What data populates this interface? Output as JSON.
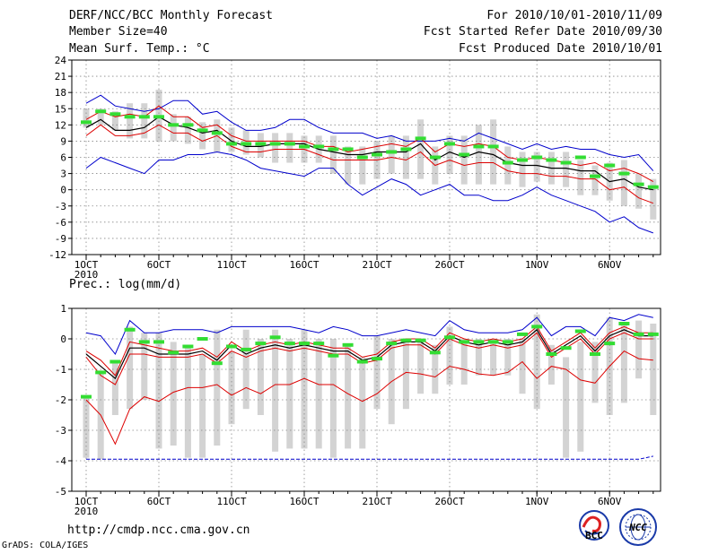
{
  "header": {
    "title": "DERF/NCC/BCC Monthly Forecast",
    "member_size": "Member Size=40",
    "variable": "Mean Surf. Temp.: °C",
    "period": "For 2010/10/01-2010/11/09",
    "fcst_started": "Fcst Started Refer Date 2010/09/30",
    "fcst_produced": "Fcst Produced Date 2010/10/01"
  },
  "footer": {
    "url": "http://cmdp.ncc.cma.gov.cn",
    "credit": "GrADS: COLA/IGES",
    "logo_left_text": "BCC",
    "logo_right_text": "NCC"
  },
  "colors": {
    "ensemble_mean": "#000000",
    "spread_bound": "#dd0000",
    "extreme_bound": "#0000cc",
    "member_bar": "#d3d3d3",
    "observed_marker": "#33dd33"
  },
  "chart_data": [
    {
      "type": "line",
      "name": "temperature",
      "ylabel": "Mean Surf. Temp.: °C",
      "ylim": [
        -12,
        24
      ],
      "yticks": [
        -12,
        -9,
        -6,
        -3,
        0,
        3,
        6,
        9,
        12,
        15,
        18,
        21,
        24
      ],
      "grid": true,
      "x": [
        1,
        2,
        3,
        4,
        5,
        6,
        7,
        8,
        9,
        10,
        11,
        12,
        13,
        14,
        15,
        16,
        17,
        18,
        19,
        20,
        21,
        22,
        23,
        24,
        25,
        26,
        27,
        28,
        29,
        30,
        31,
        32,
        33,
        34,
        35,
        36,
        37,
        38,
        39,
        40
      ],
      "xtick_labels": [
        {
          "day": 1,
          "label": "1OCT",
          "sub": "2010"
        },
        {
          "day": 6,
          "label": "6OCT"
        },
        {
          "day": 11,
          "label": "11OCT"
        },
        {
          "day": 16,
          "label": "16OCT"
        },
        {
          "day": 21,
          "label": "21OCT"
        },
        {
          "day": 26,
          "label": "26OCT"
        },
        {
          "day": 32,
          "label": "1NOV"
        },
        {
          "day": 37,
          "label": "6NOV"
        }
      ],
      "series": [
        {
          "name": "max",
          "color": "#0000cc",
          "values": [
            16,
            17.5,
            15.5,
            15,
            14.5,
            15,
            16.5,
            16.5,
            14,
            14.5,
            12.5,
            11,
            11,
            11.5,
            13,
            13,
            11.5,
            10.5,
            10.5,
            10.5,
            9.5,
            10,
            9,
            9,
            9,
            9.5,
            9,
            10.5,
            9.5,
            8.5,
            7.5,
            8.5,
            7.5,
            8,
            7.5,
            7.5,
            6.5,
            6,
            6.5,
            3.5
          ]
        },
        {
          "name": "upper",
          "color": "#dd0000",
          "values": [
            13,
            14.5,
            13.5,
            14,
            13.5,
            15.5,
            13.5,
            13.5,
            11.5,
            12,
            10,
            9,
            9,
            9,
            9,
            9,
            8,
            8,
            7,
            7.5,
            8,
            8.5,
            8,
            9.5,
            7,
            8.5,
            8,
            8.5,
            8,
            6,
            5.5,
            6,
            5.5,
            5,
            4.5,
            5,
            3.5,
            4,
            3,
            1.5
          ]
        },
        {
          "name": "mean",
          "color": "#000000",
          "values": [
            11.5,
            13,
            11,
            11,
            11.5,
            13.5,
            12,
            11.5,
            10.5,
            11,
            9,
            8,
            8,
            8.5,
            8.5,
            8.5,
            7.5,
            7,
            6.5,
            6.5,
            7,
            7,
            7,
            8.5,
            5.5,
            7,
            6,
            7,
            6.5,
            5,
            4.5,
            4.5,
            4,
            4,
            3.5,
            3.5,
            1.5,
            2,
            0.5,
            0
          ]
        },
        {
          "name": "lower",
          "color": "#dd0000",
          "values": [
            10,
            12,
            10,
            10,
            10.5,
            12,
            10.5,
            10.5,
            9,
            10,
            8,
            7,
            7,
            7.5,
            7.5,
            7.5,
            6.5,
            5.5,
            5.5,
            5.5,
            5.5,
            6,
            5.5,
            7,
            4.5,
            5.5,
            4.5,
            5,
            5,
            3.5,
            3,
            3,
            2.5,
            2.5,
            2,
            2,
            0,
            0.5,
            -1.5,
            -2.5
          ]
        },
        {
          "name": "min",
          "color": "#0000cc",
          "values": [
            4,
            6,
            5,
            4,
            3,
            5.5,
            5.5,
            6.5,
            6.5,
            7,
            6.5,
            5.5,
            4,
            3.5,
            3,
            2.5,
            4,
            4,
            1,
            -1,
            0.5,
            2,
            1,
            -1,
            0,
            1,
            -1,
            -1,
            -2,
            -2,
            -1,
            0.5,
            -1,
            -2,
            -3,
            -4,
            -6,
            -5,
            -7,
            -8
          ]
        }
      ],
      "member_range": [
        [
          11.5,
          15
        ],
        [
          12,
          15
        ],
        [
          11,
          14.5
        ],
        [
          9.5,
          16
        ],
        [
          9.5,
          16
        ],
        [
          9,
          18.5
        ],
        [
          9,
          14
        ],
        [
          8.5,
          13.5
        ],
        [
          7.5,
          12.5
        ],
        [
          7,
          13
        ],
        [
          7,
          11.5
        ],
        [
          6.5,
          11
        ],
        [
          6,
          10.5
        ],
        [
          5,
          10.5
        ],
        [
          5,
          10.5
        ],
        [
          5,
          10
        ],
        [
          5,
          10
        ],
        [
          3,
          10
        ],
        [
          1,
          8
        ],
        [
          1,
          8
        ],
        [
          2,
          9
        ],
        [
          3,
          10
        ],
        [
          2,
          10
        ],
        [
          2,
          13
        ],
        [
          1,
          8
        ],
        [
          3,
          10
        ],
        [
          1,
          10
        ],
        [
          1,
          12
        ],
        [
          1,
          13
        ],
        [
          1,
          8
        ],
        [
          0.5,
          7
        ],
        [
          1.5,
          7
        ],
        [
          1,
          7
        ],
        [
          0.5,
          7
        ],
        [
          -1,
          5.5
        ],
        [
          -1,
          4.5
        ],
        [
          -2,
          5
        ],
        [
          -3,
          5.5
        ],
        [
          -3.5,
          3
        ],
        [
          -5.5,
          2
        ]
      ],
      "observed": [
        12.5,
        14.5,
        14,
        13.5,
        13.5,
        13.5,
        12,
        12,
        11,
        10.5,
        8.5,
        8.5,
        8.5,
        8.5,
        8.5,
        8,
        8,
        7.5,
        7.5,
        6,
        6.5,
        7,
        7.5,
        9.5,
        6,
        8.5,
        6.5,
        8,
        8,
        5,
        5.5,
        6,
        5.5,
        5,
        6,
        2.5,
        4.5,
        3,
        1,
        0.5
      ]
    },
    {
      "type": "line",
      "name": "precipitation",
      "ylabel": "Prec.: log(mm/d)",
      "ylim": [
        -5,
        1
      ],
      "yticks": [
        -5,
        -4,
        -3,
        -2,
        -1,
        0,
        1
      ],
      "grid": true,
      "x": [
        1,
        2,
        3,
        4,
        5,
        6,
        7,
        8,
        9,
        10,
        11,
        12,
        13,
        14,
        15,
        16,
        17,
        18,
        19,
        20,
        21,
        22,
        23,
        24,
        25,
        26,
        27,
        28,
        29,
        30,
        31,
        32,
        33,
        34,
        35,
        36,
        37,
        38,
        39,
        40
      ],
      "xtick_labels": [
        {
          "day": 1,
          "label": "1OCT",
          "sub": "2010"
        },
        {
          "day": 6,
          "label": "6OCT"
        },
        {
          "day": 11,
          "label": "11OCT"
        },
        {
          "day": 16,
          "label": "16OCT"
        },
        {
          "day": 21,
          "label": "21OCT"
        },
        {
          "day": 26,
          "label": "26OCT"
        },
        {
          "day": 32,
          "label": "1NOV"
        },
        {
          "day": 37,
          "label": "6NOV"
        }
      ],
      "series": [
        {
          "name": "max",
          "color": "#0000cc",
          "values": [
            0.2,
            0.1,
            -0.5,
            0.6,
            0.2,
            0.2,
            0.3,
            0.3,
            0.3,
            0.2,
            0.4,
            0.4,
            0.4,
            0.4,
            0.4,
            0.3,
            0.2,
            0.4,
            0.3,
            0.1,
            0.1,
            0.2,
            0.3,
            0.2,
            0.1,
            0.6,
            0.3,
            0.2,
            0.2,
            0.2,
            0.3,
            0.7,
            0.1,
            0.4,
            0.4,
            0.1,
            0.7,
            0.6,
            0.8,
            0.7
          ]
        },
        {
          "name": "upper",
          "color": "#dd0000",
          "values": [
            -0.4,
            -0.7,
            -1.2,
            -0.1,
            -0.2,
            -0.3,
            -0.4,
            -0.4,
            -0.3,
            -0.6,
            -0.1,
            -0.4,
            -0.2,
            -0.1,
            -0.2,
            -0.1,
            -0.2,
            -0.3,
            -0.3,
            -0.6,
            -0.5,
            -0.1,
            0,
            0,
            -0.3,
            0.2,
            0,
            -0.1,
            0,
            -0.1,
            0,
            0.4,
            -0.4,
            -0.1,
            0.2,
            -0.3,
            0.2,
            0.4,
            0.2,
            0.2
          ]
        },
        {
          "name": "mean",
          "color": "#000000",
          "values": [
            -0.5,
            -0.9,
            -1.3,
            -0.3,
            -0.3,
            -0.5,
            -0.5,
            -0.5,
            -0.4,
            -0.7,
            -0.2,
            -0.5,
            -0.3,
            -0.2,
            -0.3,
            -0.2,
            -0.3,
            -0.4,
            -0.4,
            -0.7,
            -0.6,
            -0.2,
            -0.1,
            -0.1,
            -0.4,
            0.1,
            -0.1,
            -0.2,
            -0.1,
            -0.2,
            -0.1,
            0.3,
            -0.5,
            -0.2,
            0.1,
            -0.4,
            0.1,
            0.3,
            0.1,
            0.1
          ]
        },
        {
          "name": "lower",
          "color": "#dd0000",
          "values": [
            -0.6,
            -1.2,
            -1.5,
            -0.5,
            -0.5,
            -0.6,
            -0.6,
            -0.6,
            -0.5,
            -0.8,
            -0.4,
            -0.6,
            -0.4,
            -0.3,
            -0.4,
            -0.3,
            -0.4,
            -0.5,
            -0.5,
            -0.8,
            -0.7,
            -0.3,
            -0.2,
            -0.2,
            -0.5,
            0,
            -0.2,
            -0.3,
            -0.2,
            -0.3,
            -0.2,
            0.2,
            -0.6,
            -0.3,
            0,
            -0.5,
            0,
            0.2,
            0,
            0
          ]
        },
        {
          "name": "min",
          "color": "#dd0000",
          "values": [
            -2.0,
            -2.5,
            -3.45,
            -2.3,
            -1.9,
            -2.05,
            -1.75,
            -1.6,
            -1.6,
            -1.5,
            -1.85,
            -1.6,
            -1.8,
            -1.5,
            -1.5,
            -1.3,
            -1.5,
            -1.5,
            -1.8,
            -2.05,
            -1.8,
            -1.4,
            -1.1,
            -1.15,
            -1.25,
            -0.9,
            -1.0,
            -1.15,
            -1.2,
            -1.1,
            -0.75,
            -1.3,
            -0.9,
            -1.0,
            -1.35,
            -1.45,
            -0.9,
            -0.4,
            -0.65,
            -0.7
          ]
        },
        {
          "name": "floor",
          "color": "#0000cc",
          "values": [
            -3.95,
            -3.95,
            -3.95,
            -3.95,
            -3.95,
            -3.95,
            -3.95,
            -3.95,
            -3.95,
            -3.95,
            -3.95,
            -3.95,
            -3.95,
            -3.95,
            -3.95,
            -3.95,
            -3.95,
            -3.95,
            -3.95,
            -3.95,
            -3.95,
            -3.95,
            -3.95,
            -3.95,
            -3.95,
            -3.95,
            -3.95,
            -3.95,
            -3.95,
            -3.95,
            -3.95,
            -3.95,
            -3.95,
            -3.95,
            -3.95,
            -3.95,
            -3.95,
            -3.95,
            -3.95,
            -3.85
          ]
        }
      ],
      "member_range": [
        [
          -3.9,
          -1.9
        ],
        [
          -3.95,
          -1.1
        ],
        [
          -2.5,
          -0.8
        ],
        [
          -2.3,
          0.4
        ],
        [
          -2.0,
          0.2
        ],
        [
          -3.6,
          0.2
        ],
        [
          -3.5,
          -0.1
        ],
        [
          -3.9,
          -0.3
        ],
        [
          -3.9,
          -0.5
        ],
        [
          -3.5,
          0.3
        ],
        [
          -2.8,
          -0.4
        ],
        [
          -2.3,
          0.3
        ],
        [
          -2.5,
          0
        ],
        [
          -3.7,
          0.3
        ],
        [
          -3.6,
          0
        ],
        [
          -3.6,
          0.3
        ],
        [
          -3.6,
          0
        ],
        [
          -3.9,
          0
        ],
        [
          -3.6,
          -0.2
        ],
        [
          -3.6,
          -0.6
        ],
        [
          -2.3,
          0.1
        ],
        [
          -2.8,
          0
        ],
        [
          -2.3,
          0
        ],
        [
          -1.8,
          0
        ],
        [
          -1.8,
          -0.2
        ],
        [
          -1.5,
          0.4
        ],
        [
          -1.5,
          0
        ],
        [
          -1.2,
          0
        ],
        [
          -1.2,
          0
        ],
        [
          -1.2,
          0
        ],
        [
          -1.8,
          0
        ],
        [
          -2.3,
          0.8
        ],
        [
          -1.5,
          -0.2
        ],
        [
          -3.9,
          -0.6
        ],
        [
          -3.7,
          -0.1
        ],
        [
          -2.1,
          -0.1
        ],
        [
          -2.5,
          0.7
        ],
        [
          -2.1,
          0.5
        ],
        [
          -1.3,
          0.6
        ],
        [
          -2.5,
          0.5
        ]
      ],
      "observed": [
        -1.9,
        -1.1,
        -0.75,
        0.3,
        -0.1,
        -0.1,
        -0.45,
        -0.25,
        0,
        -0.8,
        -0.25,
        -0.35,
        -0.15,
        0.05,
        -0.15,
        -0.15,
        -0.15,
        -0.55,
        -0.2,
        -0.75,
        -0.65,
        -0.15,
        -0.05,
        -0.05,
        -0.45,
        0.05,
        -0.1,
        -0.1,
        -0.1,
        -0.1,
        0.15,
        0.4,
        -0.5,
        -0.3,
        0.25,
        -0.5,
        -0.15,
        0.5,
        0.15,
        0.15
      ]
    }
  ]
}
